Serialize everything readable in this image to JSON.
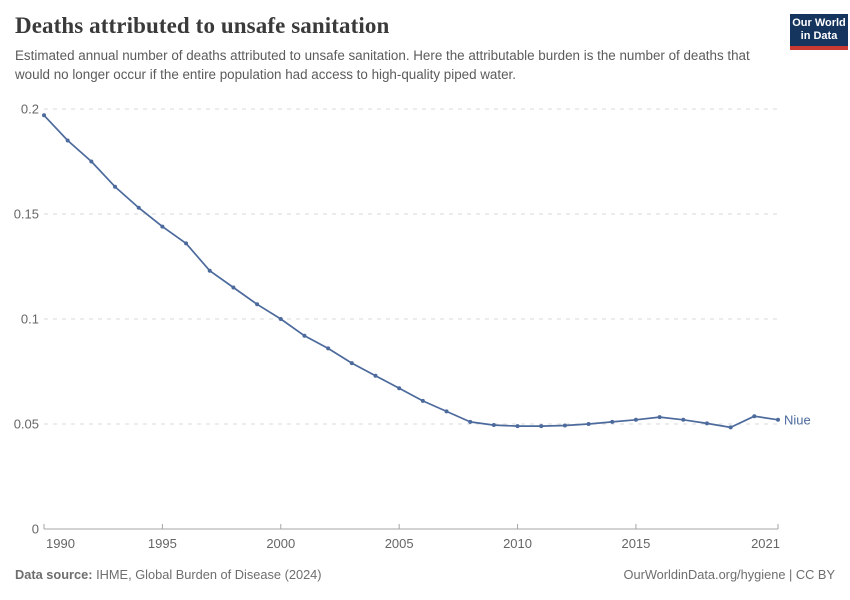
{
  "header": {
    "title": "Deaths attributed to unsafe sanitation",
    "subtitle": "Estimated annual number of deaths attributed to unsafe sanitation. Here the attributable burden is the number of deaths that would no longer occur if the entire population had access to high-quality piped water.",
    "logo": {
      "line1": "Our World",
      "line2": "in Data",
      "bg_color": "#15355f",
      "accent_color": "#cb3a32"
    }
  },
  "chart_data": {
    "type": "line",
    "title": "Deaths attributed to unsafe sanitation",
    "xlabel": "",
    "ylabel": "",
    "xlim": [
      1990,
      2021
    ],
    "ylim": [
      0,
      0.2
    ],
    "x_ticks": [
      1990,
      1995,
      2000,
      2005,
      2010,
      2015,
      2021
    ],
    "y_ticks": [
      0,
      0.05,
      0.1,
      0.15,
      0.2
    ],
    "grid": "horizontal-dashed",
    "legend": "end-of-line-label",
    "series": [
      {
        "name": "Niue",
        "color": "#4c6a9c",
        "x": [
          1990,
          1991,
          1992,
          1993,
          1994,
          1995,
          1996,
          1997,
          1998,
          1999,
          2000,
          2001,
          2002,
          2003,
          2004,
          2005,
          2006,
          2007,
          2008,
          2009,
          2010,
          2011,
          2012,
          2013,
          2014,
          2015,
          2016,
          2017,
          2018,
          2019,
          2020,
          2021
        ],
        "values": [
          0.197,
          0.185,
          0.175,
          0.163,
          0.153,
          0.144,
          0.136,
          0.123,
          0.115,
          0.107,
          0.1,
          0.092,
          0.086,
          0.079,
          0.073,
          0.067,
          0.061,
          0.056,
          0.051,
          0.0495,
          0.049,
          0.049,
          0.0493,
          0.05,
          0.051,
          0.052,
          0.0533,
          0.052,
          0.0503,
          0.0484,
          0.0537,
          0.052
        ]
      }
    ]
  },
  "footer": {
    "source_label": "Data source:",
    "source_text": " IHME, Global Burden of Disease (2024)",
    "attribution": "OurWorldinData.org/hygiene | CC BY"
  },
  "colors": {
    "grid": "#dadada",
    "axis": "#a5a5a5",
    "tick_text": "#666666",
    "title_text": "#3a3a3a",
    "subtitle_text": "#5b5b5b",
    "footer_text": "#6e6e6e",
    "line": "#4c6a9c"
  }
}
